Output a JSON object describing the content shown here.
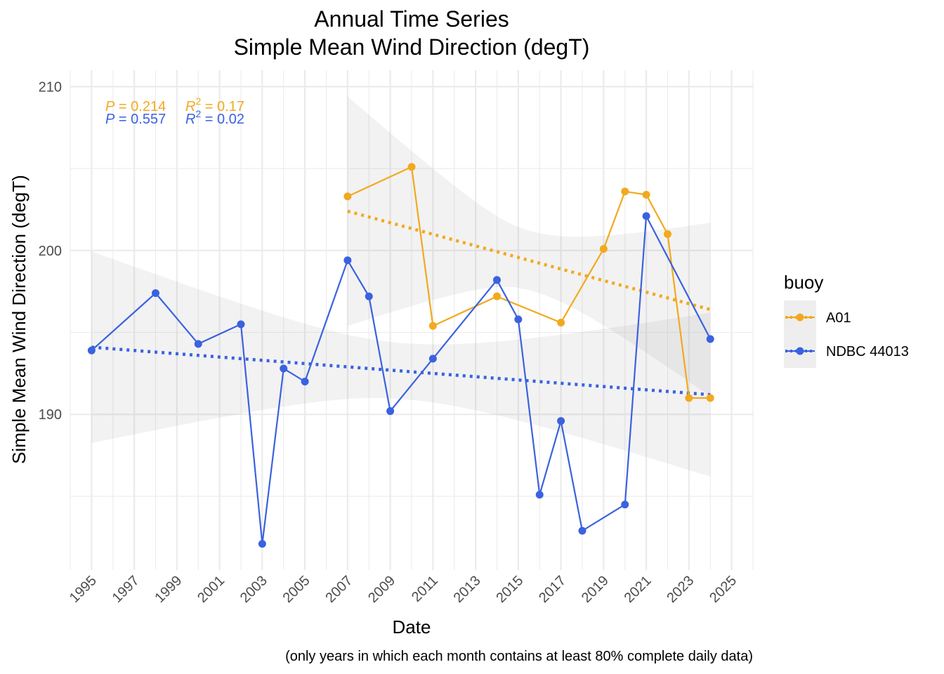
{
  "chart_data": {
    "type": "line",
    "title": "Annual Time Series",
    "subtitle": "Simple Mean Wind Direction (degT)",
    "xlabel": "Date",
    "ylabel": "Simple Mean Wind Direction (degT)",
    "caption": "(only years in which each month contains at least 80% complete daily data)",
    "xlim": [
      1994,
      2026
    ],
    "ylim": [
      180.5,
      211
    ],
    "x_ticks": [
      "1995",
      "1997",
      "1999",
      "2001",
      "2003",
      "2005",
      "2007",
      "2009",
      "2011",
      "2013",
      "2015",
      "2017",
      "2019",
      "2021",
      "2023",
      "2025"
    ],
    "y_ticks": [
      190,
      200,
      210
    ],
    "y_minor_ticks": [
      185,
      195,
      205
    ],
    "grid": true,
    "legend": {
      "title": "buoy",
      "position": "right"
    },
    "series": [
      {
        "name": "A01",
        "color": "#F2A91E",
        "x": [
          2007,
          2010,
          2011,
          2014,
          2017,
          2019,
          2020,
          2021,
          2022,
          2023,
          2024
        ],
        "y": [
          203.3,
          205.1,
          195.4,
          197.2,
          195.6,
          200.1,
          203.6,
          203.4,
          201.0,
          191.0,
          191.0
        ],
        "trend": {
          "x": [
            2007,
            2024
          ],
          "y": [
            202.4,
            196.4
          ],
          "ci_upper": [
            209.4,
            201.7
          ],
          "ci_lower": [
            195.4,
            191.1
          ]
        },
        "stats": {
          "P": "0.214",
          "R2": "0.17"
        }
      },
      {
        "name": "NDBC 44013",
        "color": "#3A62E0",
        "x": [
          1995,
          1998,
          2000,
          2002,
          2003,
          2004,
          2005,
          2007,
          2008,
          2009,
          2011,
          2014,
          2015,
          2016,
          2017,
          2018,
          2020,
          2021,
          2024
        ],
        "y": [
          193.9,
          197.4,
          194.3,
          195.5,
          182.1,
          192.8,
          192.0,
          199.4,
          197.2,
          190.2,
          193.4,
          198.2,
          195.8,
          185.1,
          189.6,
          182.9,
          184.5,
          202.1,
          194.6
        ],
        "trend": {
          "x": [
            1995,
            2024
          ],
          "y": [
            194.1,
            191.2
          ],
          "ci_upper": [
            200.0,
            195.6
          ],
          "ci_lower": [
            188.3,
            185.6
          ]
        },
        "stats": {
          "P": "0.557",
          "R2": "0.02"
        }
      }
    ]
  }
}
